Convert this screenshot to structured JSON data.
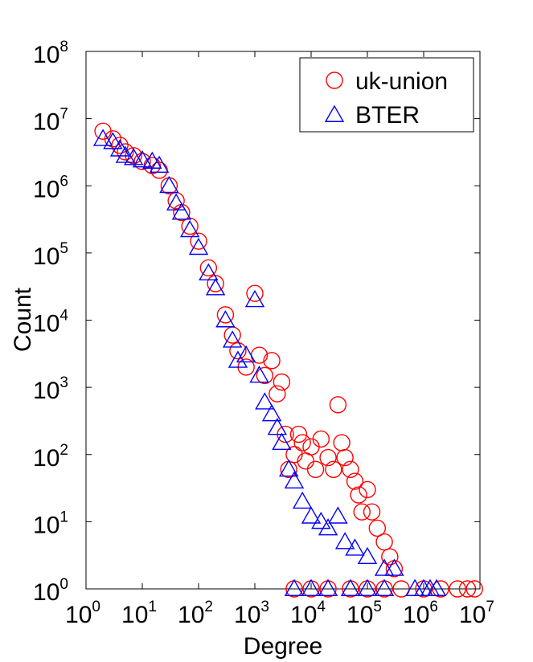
{
  "chart_data": {
    "type": "scatter",
    "title": "",
    "xlabel": "Degree",
    "ylabel": "Count",
    "xscale": "log",
    "yscale": "log",
    "xlim": [
      1,
      10000000
    ],
    "ylim": [
      1,
      100000000
    ],
    "x_ticks": [
      {
        "base": "10",
        "exp": "0",
        "value": 1
      },
      {
        "base": "10",
        "exp": "1",
        "value": 10
      },
      {
        "base": "10",
        "exp": "2",
        "value": 100
      },
      {
        "base": "10",
        "exp": "3",
        "value": 1000
      },
      {
        "base": "10",
        "exp": "4",
        "value": 10000
      },
      {
        "base": "10",
        "exp": "5",
        "value": 100000
      },
      {
        "base": "10",
        "exp": "6",
        "value": 1000000
      },
      {
        "base": "10",
        "exp": "7",
        "value": 10000000
      }
    ],
    "y_ticks": [
      {
        "base": "10",
        "exp": "0",
        "value": 1
      },
      {
        "base": "10",
        "exp": "1",
        "value": 10
      },
      {
        "base": "10",
        "exp": "2",
        "value": 100
      },
      {
        "base": "10",
        "exp": "3",
        "value": 1000
      },
      {
        "base": "10",
        "exp": "4",
        "value": 10000
      },
      {
        "base": "10",
        "exp": "5",
        "value": 100000
      },
      {
        "base": "10",
        "exp": "6",
        "value": 1000000
      },
      {
        "base": "10",
        "exp": "7",
        "value": 10000000
      },
      {
        "base": "10",
        "exp": "8",
        "value": 100000000
      }
    ],
    "legend_position": "top-right",
    "grid": false,
    "series": [
      {
        "name": "uk-union",
        "marker": "circle",
        "color": "#ff0000",
        "points": [
          [
            2,
            6500000
          ],
          [
            3,
            5000000
          ],
          [
            4,
            4000000
          ],
          [
            5,
            3200000
          ],
          [
            7,
            2800000
          ],
          [
            10,
            2300000
          ],
          [
            15,
            2000000
          ],
          [
            20,
            1700000
          ],
          [
            30,
            1000000
          ],
          [
            40,
            600000
          ],
          [
            50,
            400000
          ],
          [
            70,
            250000
          ],
          [
            100,
            150000
          ],
          [
            150,
            60000
          ],
          [
            200,
            35000
          ],
          [
            300,
            12000
          ],
          [
            400,
            6000
          ],
          [
            500,
            3500
          ],
          [
            700,
            2000
          ],
          [
            1000,
            25000
          ],
          [
            1200,
            3000
          ],
          [
            1500,
            1500
          ],
          [
            2000,
            2500
          ],
          [
            2500,
            800
          ],
          [
            3000,
            1200
          ],
          [
            3500,
            200
          ],
          [
            4000,
            60
          ],
          [
            5000,
            100
          ],
          [
            6000,
            200
          ],
          [
            7000,
            150
          ],
          [
            8000,
            80
          ],
          [
            10000,
            130
          ],
          [
            12000,
            60
          ],
          [
            15000,
            170
          ],
          [
            20000,
            90
          ],
          [
            25000,
            60
          ],
          [
            30000,
            550
          ],
          [
            35000,
            150
          ],
          [
            40000,
            90
          ],
          [
            50000,
            60
          ],
          [
            60000,
            40
          ],
          [
            70000,
            25
          ],
          [
            80000,
            14
          ],
          [
            100000,
            30
          ],
          [
            120000,
            14
          ],
          [
            150000,
            8
          ],
          [
            200000,
            5
          ],
          [
            250000,
            3
          ],
          [
            300000,
            2
          ],
          [
            5000,
            1
          ],
          [
            10000,
            1
          ],
          [
            20000,
            1
          ],
          [
            50000,
            1
          ],
          [
            100000,
            1
          ],
          [
            200000,
            1
          ],
          [
            400000,
            1
          ],
          [
            1000000,
            1
          ],
          [
            2000000,
            1
          ],
          [
            4000000,
            1
          ],
          [
            6000000,
            1
          ],
          [
            8000000,
            1
          ]
        ]
      },
      {
        "name": "BTER",
        "marker": "triangle",
        "color": "#0000ff",
        "points": [
          [
            2,
            5000000
          ],
          [
            3,
            4500000
          ],
          [
            4,
            3500000
          ],
          [
            5,
            2800000
          ],
          [
            7,
            2600000
          ],
          [
            10,
            2400000
          ],
          [
            15,
            2300000
          ],
          [
            20,
            2000000
          ],
          [
            30,
            1000000
          ],
          [
            40,
            550000
          ],
          [
            50,
            400000
          ],
          [
            70,
            220000
          ],
          [
            100,
            120000
          ],
          [
            150,
            50000
          ],
          [
            200,
            30000
          ],
          [
            300,
            10000
          ],
          [
            400,
            5000
          ],
          [
            500,
            2500
          ],
          [
            700,
            3000
          ],
          [
            1000,
            20000
          ],
          [
            1200,
            1500
          ],
          [
            1500,
            600
          ],
          [
            2000,
            400
          ],
          [
            2500,
            250
          ],
          [
            3000,
            150
          ],
          [
            4000,
            60
          ],
          [
            5000,
            40
          ],
          [
            7000,
            20
          ],
          [
            10000,
            12
          ],
          [
            15000,
            10
          ],
          [
            20000,
            8
          ],
          [
            30000,
            12
          ],
          [
            40000,
            5
          ],
          [
            60000,
            4
          ],
          [
            100000,
            3
          ],
          [
            200000,
            2
          ],
          [
            300000,
            2
          ],
          [
            5000,
            1
          ],
          [
            10000,
            1
          ],
          [
            20000,
            1
          ],
          [
            50000,
            1
          ],
          [
            100000,
            1
          ],
          [
            200000,
            1
          ],
          [
            700000,
            1
          ],
          [
            1000000,
            1
          ],
          [
            1300000,
            1
          ],
          [
            1700000,
            1
          ]
        ]
      }
    ]
  }
}
